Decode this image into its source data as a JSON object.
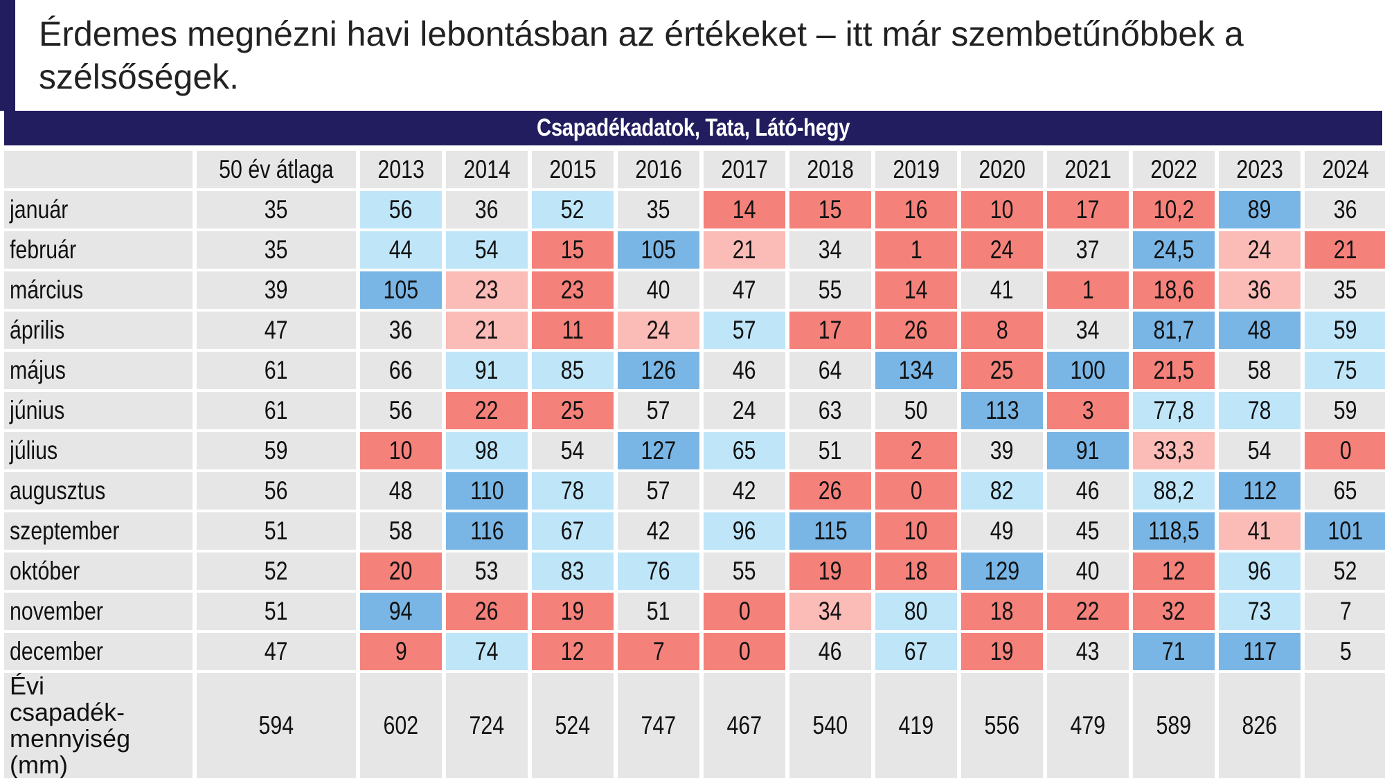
{
  "heading": "Érdemes megnézni havi lebontásban az értékeket – itt már szembetűnőbbek a szélsőségek.",
  "chart_data": {
    "type": "table",
    "title": "Csapadékadatok, Tata, Látó-hegy",
    "header_blank": "",
    "columns": [
      "50 év átlaga",
      "2013",
      "2014",
      "2015",
      "2016",
      "2017",
      "2018",
      "2019",
      "2020",
      "2021",
      "2022",
      "2023",
      "2024"
    ],
    "rows": [
      {
        "label": "január",
        "values": [
          "35",
          "56",
          "36",
          "52",
          "35",
          "14",
          "15",
          "16",
          "10",
          "17",
          "10,2",
          "89",
          "36"
        ]
      },
      {
        "label": "február",
        "values": [
          "35",
          "44",
          "54",
          "15",
          "105",
          "21",
          "34",
          "1",
          "24",
          "37",
          "24,5",
          "24",
          "21"
        ]
      },
      {
        "label": "március",
        "values": [
          "39",
          "105",
          "23",
          "23",
          "40",
          "47",
          "55",
          "14",
          "41",
          "1",
          "18,6",
          "36",
          "35"
        ]
      },
      {
        "label": "április",
        "values": [
          "47",
          "36",
          "21",
          "11",
          "24",
          "57",
          "17",
          "26",
          "8",
          "34",
          "81,7",
          "48",
          "59"
        ]
      },
      {
        "label": "május",
        "values": [
          "61",
          "66",
          "91",
          "85",
          "126",
          "46",
          "64",
          "134",
          "25",
          "100",
          "21,5",
          "58",
          "75"
        ]
      },
      {
        "label": "június",
        "values": [
          "61",
          "56",
          "22",
          "25",
          "57",
          "24",
          "63",
          "50",
          "113",
          "3",
          "77,8",
          "78",
          "59"
        ]
      },
      {
        "label": "július",
        "values": [
          "59",
          "10",
          "98",
          "54",
          "127",
          "65",
          "51",
          "2",
          "39",
          "91",
          "33,3",
          "54",
          "0"
        ]
      },
      {
        "label": "augusztus",
        "values": [
          "56",
          "48",
          "110",
          "78",
          "57",
          "42",
          "26",
          "0",
          "82",
          "46",
          "88,2",
          "112",
          "65"
        ]
      },
      {
        "label": "szeptember",
        "values": [
          "51",
          "58",
          "116",
          "67",
          "42",
          "96",
          "115",
          "10",
          "49",
          "45",
          "118,5",
          "41",
          "101"
        ]
      },
      {
        "label": "október",
        "values": [
          "52",
          "20",
          "53",
          "83",
          "76",
          "55",
          "19",
          "18",
          "129",
          "40",
          "12",
          "96",
          "52"
        ]
      },
      {
        "label": "november",
        "values": [
          "51",
          "94",
          "26",
          "19",
          "51",
          "0",
          "34",
          "80",
          "18",
          "22",
          "32",
          "73",
          "7"
        ]
      },
      {
        "label": "december",
        "values": [
          "47",
          "9",
          "74",
          "12",
          "7",
          "0",
          "46",
          "67",
          "19",
          "43",
          "71",
          "117",
          "5"
        ]
      }
    ],
    "total_row": {
      "label": "Évi csapadék-mennyiség (mm)",
      "values": [
        "594",
        "602",
        "724",
        "524",
        "747",
        "467",
        "540",
        "419",
        "556",
        "479",
        "589",
        "826",
        ""
      ]
    },
    "cell_colors": [
      [
        "n",
        "bl",
        "n",
        "bl",
        "n",
        "rd",
        "rd",
        "rd",
        "rd",
        "rd",
        "rd",
        "bd",
        "n"
      ],
      [
        "n",
        "bl",
        "bl",
        "rd",
        "bd",
        "rl",
        "n",
        "rd",
        "rd",
        "n",
        "bd",
        "rl",
        "rd"
      ],
      [
        "n",
        "bd",
        "rl",
        "rd",
        "n",
        "n",
        "n",
        "rd",
        "n",
        "rd",
        "rd",
        "rl",
        "n"
      ],
      [
        "n",
        "n",
        "rl",
        "rd",
        "rl",
        "bl",
        "rd",
        "rd",
        "rd",
        "n",
        "bd",
        "bd",
        "bl"
      ],
      [
        "n",
        "n",
        "bl",
        "bl",
        "bd",
        "n",
        "n",
        "bd",
        "rd",
        "bd",
        "rd",
        "n",
        "bl"
      ],
      [
        "n",
        "n",
        "rd",
        "rd",
        "n",
        "n",
        "n",
        "n",
        "bd",
        "rd",
        "bl",
        "bl",
        "n"
      ],
      [
        "n",
        "rd",
        "bl",
        "n",
        "bd",
        "bl",
        "n",
        "rd",
        "n",
        "bd",
        "rl",
        "n",
        "rd"
      ],
      [
        "n",
        "n",
        "bd",
        "bl",
        "n",
        "n",
        "rd",
        "rd",
        "bl",
        "n",
        "bl",
        "bd",
        "n"
      ],
      [
        "n",
        "n",
        "bd",
        "bl",
        "n",
        "bl",
        "bd",
        "rd",
        "n",
        "n",
        "bd",
        "rl",
        "bd"
      ],
      [
        "n",
        "rd",
        "n",
        "bl",
        "bl",
        "n",
        "rd",
        "rd",
        "bd",
        "n",
        "rd",
        "bl",
        "n"
      ],
      [
        "n",
        "bd",
        "rd",
        "rd",
        "n",
        "rd",
        "rl",
        "bl",
        "rd",
        "rd",
        "rd",
        "bl",
        "n"
      ],
      [
        "n",
        "rd",
        "bl",
        "rd",
        "rd",
        "rd",
        "n",
        "bl",
        "rd",
        "n",
        "bd",
        "bd",
        "n"
      ]
    ],
    "palette": {
      "rd": "#f4817a",
      "rl": "#fbbbb6",
      "bd": "#79b6e6",
      "bl": "#bfe5f9",
      "n": "#e6e6e6",
      "header_bg": "#221d5e"
    }
  }
}
